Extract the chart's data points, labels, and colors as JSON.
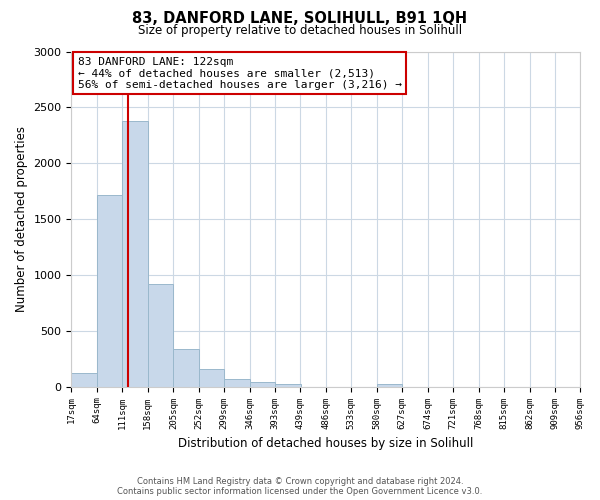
{
  "title": "83, DANFORD LANE, SOLIHULL, B91 1QH",
  "subtitle": "Size of property relative to detached houses in Solihull",
  "xlabel": "Distribution of detached houses by size in Solihull",
  "ylabel": "Number of detached properties",
  "bar_color": "#c8d8ea",
  "bar_edge_color": "#9ab8cc",
  "annotation_box_color": "#ffffff",
  "annotation_box_edge": "#cc0000",
  "property_line_color": "#cc0000",
  "bins": [
    17,
    64,
    111,
    158,
    205,
    252,
    299,
    346,
    393,
    439,
    486,
    533,
    580,
    627,
    674,
    721,
    768,
    815,
    862,
    909,
    956
  ],
  "bin_labels": [
    "17sqm",
    "64sqm",
    "111sqm",
    "158sqm",
    "205sqm",
    "252sqm",
    "299sqm",
    "346sqm",
    "393sqm",
    "439sqm",
    "486sqm",
    "533sqm",
    "580sqm",
    "627sqm",
    "674sqm",
    "721sqm",
    "768sqm",
    "815sqm",
    "862sqm",
    "909sqm",
    "956sqm"
  ],
  "counts": [
    120,
    1720,
    2380,
    920,
    340,
    155,
    70,
    40,
    25,
    0,
    0,
    0,
    20,
    0,
    0,
    0,
    0,
    0,
    0,
    0
  ],
  "ylim": [
    0,
    3000
  ],
  "yticks": [
    0,
    500,
    1000,
    1500,
    2000,
    2500,
    3000
  ],
  "property_size": 122,
  "property_label": "83 DANFORD LANE: 122sqm",
  "annotation_line1": "← 44% of detached houses are smaller (2,513)",
  "annotation_line2": "56% of semi-detached houses are larger (3,216) →",
  "footer1": "Contains HM Land Registry data © Crown copyright and database right 2024.",
  "footer2": "Contains public sector information licensed under the Open Government Licence v3.0.",
  "background_color": "#ffffff",
  "grid_color": "#ccd8e4"
}
